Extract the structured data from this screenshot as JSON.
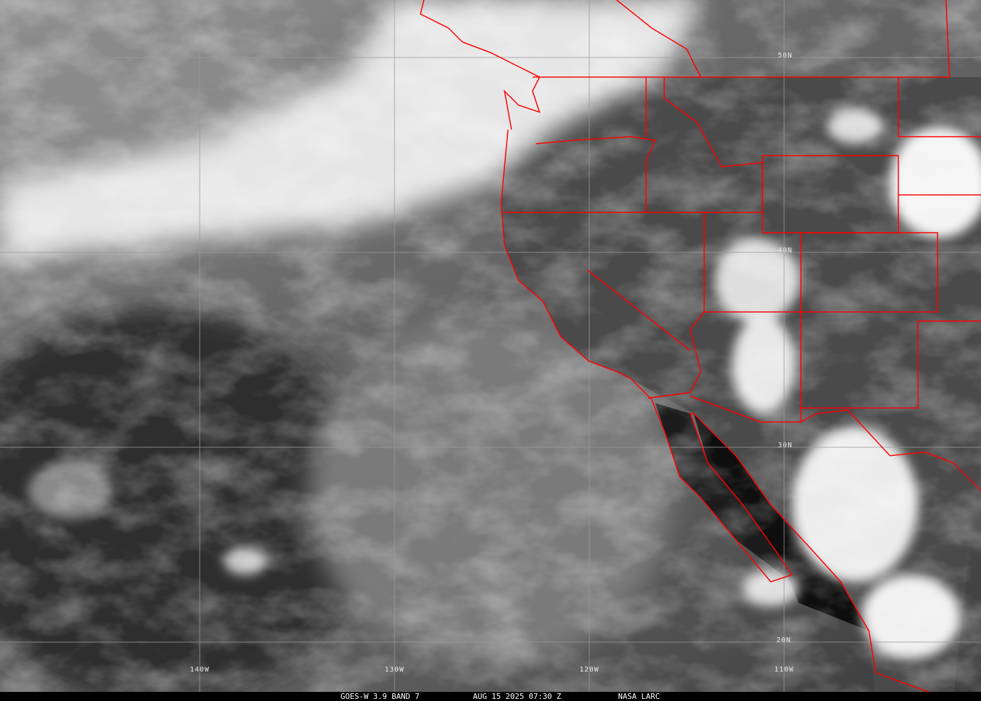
{
  "caption": {
    "satellite_band": "GOES-W 3.9 BAND 7",
    "datetime": "AUG 15 2025 07:30 Z",
    "source": "NASA LARC"
  },
  "grid": {
    "latitudes": [
      "50N",
      "40N",
      "30N",
      "20N"
    ],
    "longitudes": [
      "140W",
      "130W",
      "120W",
      "110W"
    ]
  },
  "colors": {
    "boundaries": "#ff0000",
    "grid": "#9a9a9a",
    "clouds": "#ffffff",
    "ocean": "#5c5c5c"
  }
}
